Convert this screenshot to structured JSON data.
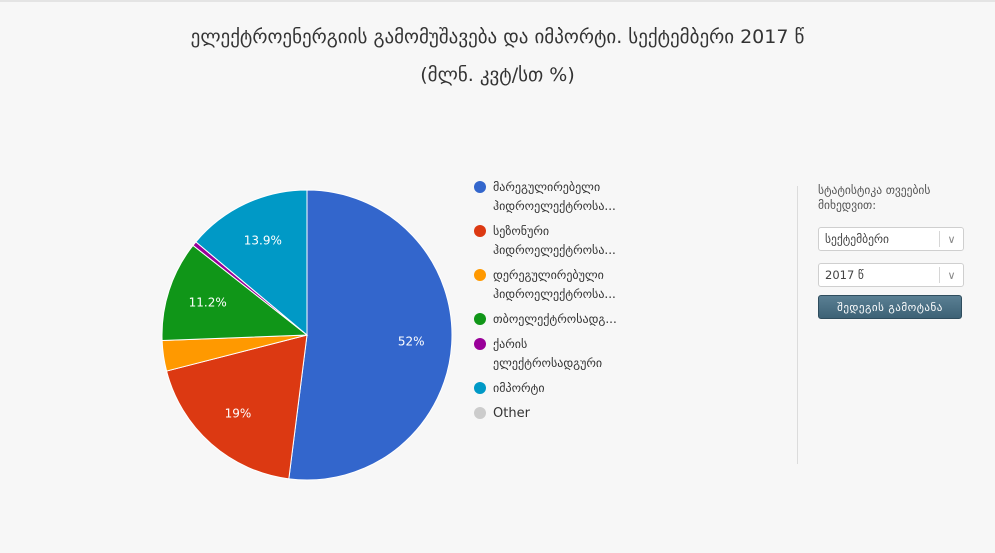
{
  "chart_data": {
    "type": "pie",
    "title": "ელექტროენერგიის გამომუშავება და იმპორტი. სექტემბერი 2017 წ",
    "subtitle": "(მლნ. კვტ/სთ %)",
    "legend_position": "right",
    "slices": [
      {
        "label_lines": [
          "მარეგულირებელი",
          "ჰიდროელექტროსა..."
        ],
        "value": 52,
        "color": "#3366cc",
        "data_label": "52%"
      },
      {
        "label_lines": [
          "სეზონური",
          "ჰიდროელექტროსა..."
        ],
        "value": 19,
        "color": "#dc3912",
        "data_label": "19%"
      },
      {
        "label_lines": [
          "დერეგულირებული",
          "ჰიდროელექტროსა..."
        ],
        "value": 3.4,
        "color": "#ff9900",
        "data_label": ""
      },
      {
        "label_lines": [
          "თბოელექტროსადგ..."
        ],
        "value": 11.2,
        "color": "#109618",
        "data_label": "11.2%"
      },
      {
        "label_lines": [
          "ქარის",
          "ელექტროსადგური"
        ],
        "value": 0.5,
        "color": "#990099",
        "data_label": ""
      },
      {
        "label_lines": [
          "იმპორტი"
        ],
        "value": 13.9,
        "color": "#0099c6",
        "data_label": "13.9%"
      },
      {
        "label_lines": [
          "Other"
        ],
        "value": 0,
        "color": "#cccccc",
        "data_label": ""
      }
    ]
  },
  "filters": {
    "label_lines": [
      "სტატისტიკა თვეების",
      "მიხედვით:"
    ],
    "month_value": "სექტემბერი",
    "year_value": "2017 წ",
    "submit_label": "შედეგის გამოტანა"
  }
}
